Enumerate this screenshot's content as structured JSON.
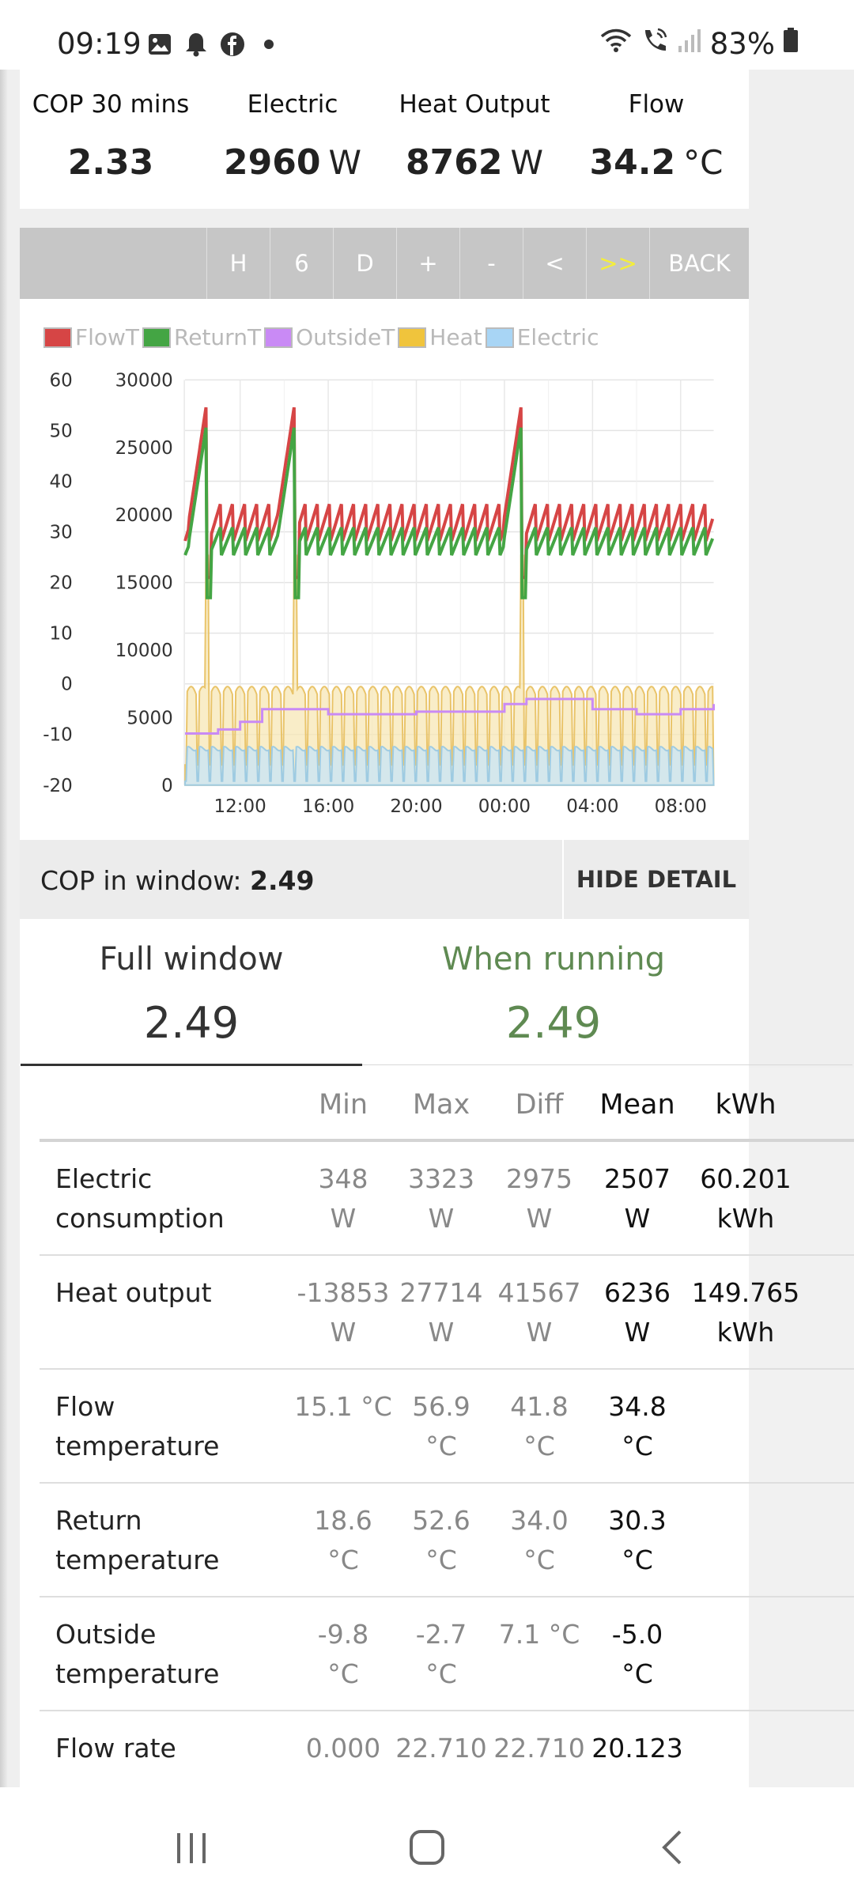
{
  "status_bar": {
    "time": "09:19",
    "battery": "83%",
    "left_icons": [
      "image-icon",
      "bell-icon",
      "facebook-icon",
      "dot-icon"
    ],
    "right_icons": [
      "wifi-icon",
      "call-icon",
      "signal-icon",
      "battery-icon"
    ]
  },
  "summary": [
    {
      "label": "COP 30 mins",
      "value": "2.33",
      "unit": ""
    },
    {
      "label": "Electric",
      "value": "2960",
      "unit": "W"
    },
    {
      "label": "Heat Output",
      "value": "8762",
      "unit": "W"
    },
    {
      "label": "Flow",
      "value": "34.2",
      "unit": "°C"
    }
  ],
  "toolbar": {
    "buttons": [
      "H",
      "6",
      "D",
      "+",
      "-",
      "<",
      ">>",
      "BACK"
    ],
    "active": ">>"
  },
  "legend": [
    {
      "name": "FlowT",
      "color": "#d64545"
    },
    {
      "name": "ReturnT",
      "color": "#44a544"
    },
    {
      "name": "OutsideT",
      "color": "#c98af5"
    },
    {
      "name": "Heat",
      "color": "#f0c43c"
    },
    {
      "name": "Electric",
      "color": "#a8d5f5"
    }
  ],
  "chart_data": {
    "type": "line",
    "x_ticks": [
      "12:00",
      "16:00",
      "20:00",
      "00:00",
      "04:00",
      "08:00"
    ],
    "y_left_ticks": [
      "60",
      "50",
      "40",
      "30",
      "20",
      "10",
      "0",
      "-10",
      "-20"
    ],
    "y_right_ticks": [
      "30000",
      "25000",
      "20000",
      "15000",
      "10000",
      "5000",
      "0"
    ],
    "ylim_left": [
      -20,
      60
    ],
    "ylim_right": [
      0,
      30000
    ],
    "grid": true,
    "x_range_hours": [
      9.5,
      33.5
    ],
    "series": [
      {
        "name": "FlowT",
        "axis": "left",
        "base": 33,
        "spike_hours": [
          10.5,
          14.5,
          24.8
        ],
        "spike_peak": 56
      },
      {
        "name": "ReturnT",
        "axis": "left",
        "base": 29,
        "spike_hours": [
          10.5,
          14.5,
          24.8
        ],
        "spike_peak": 52
      },
      {
        "name": "OutsideT",
        "axis": "left",
        "points": [
          [
            9.5,
            -9.8
          ],
          [
            11,
            -9
          ],
          [
            12,
            -7.5
          ],
          [
            13,
            -5
          ],
          [
            16,
            -6
          ],
          [
            20,
            -5.5
          ],
          [
            24,
            -4
          ],
          [
            25,
            -3
          ],
          [
            28,
            -5
          ],
          [
            30,
            -6
          ],
          [
            32,
            -5
          ],
          [
            33.5,
            -4
          ]
        ]
      },
      {
        "name": "Heat",
        "axis": "right",
        "base": 6500,
        "peak": 8500
      },
      {
        "name": "Electric",
        "axis": "right",
        "base": 2700
      }
    ]
  },
  "cop_window": {
    "label": "COP in window:",
    "value": "2.49",
    "hide_label": "HIDE DETAIL"
  },
  "tabs": [
    {
      "label": "Full window",
      "value": "2.49"
    },
    {
      "label": "When running",
      "value": "2.49"
    }
  ],
  "table": {
    "headers": [
      "Min",
      "Max",
      "Diff",
      "Mean",
      "kWh"
    ],
    "rows": [
      {
        "name": [
          "Electric",
          "consumption"
        ],
        "min": [
          "348",
          "W"
        ],
        "max": [
          "3323",
          "W"
        ],
        "diff": [
          "2975",
          "W"
        ],
        "mean": [
          "2507",
          "W"
        ],
        "kwh": [
          "60.201",
          "kWh"
        ]
      },
      {
        "name": [
          "Heat output",
          ""
        ],
        "min": [
          "-13853",
          "W"
        ],
        "max": [
          "27714",
          "W"
        ],
        "diff": [
          "41567",
          "W"
        ],
        "mean": [
          "6236",
          "W"
        ],
        "kwh": [
          "149.765",
          "kWh"
        ]
      },
      {
        "name": [
          "Flow",
          "temperature"
        ],
        "min": [
          "15.1 °C",
          ""
        ],
        "max": [
          "56.9",
          "°C"
        ],
        "diff": [
          "41.8",
          "°C"
        ],
        "mean": [
          "34.8",
          "°C"
        ],
        "kwh": [
          "",
          ""
        ]
      },
      {
        "name": [
          "Return",
          "temperature"
        ],
        "min": [
          "18.6",
          "°C"
        ],
        "max": [
          "52.6",
          "°C"
        ],
        "diff": [
          "34.0",
          "°C"
        ],
        "mean": [
          "30.3",
          "°C"
        ],
        "kwh": [
          "",
          ""
        ]
      },
      {
        "name": [
          "Outside",
          "temperature"
        ],
        "min": [
          "-9.8",
          "°C"
        ],
        "max": [
          "-2.7",
          "°C"
        ],
        "diff": [
          "7.1 °C",
          ""
        ],
        "mean": [
          "-5.0",
          "°C"
        ],
        "kwh": [
          "",
          ""
        ]
      },
      {
        "name": [
          "Flow rate",
          ""
        ],
        "min": [
          "0.000",
          ""
        ],
        "max": [
          "22.710",
          ""
        ],
        "diff": [
          "22.710",
          ""
        ],
        "mean": [
          "20.123",
          ""
        ],
        "kwh": [
          "",
          ""
        ]
      }
    ]
  },
  "nav": [
    "recent-apps-icon",
    "home-icon",
    "back-icon"
  ]
}
